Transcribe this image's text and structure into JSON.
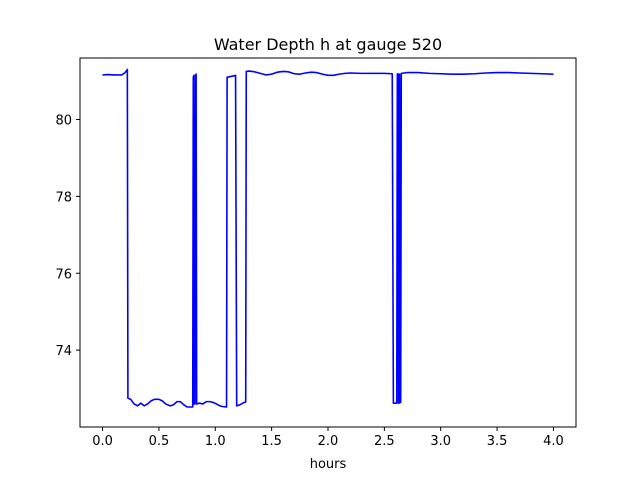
{
  "chart_data": {
    "type": "line",
    "title": "Water Depth h at gauge 520",
    "xlabel": "hours",
    "ylabel": "",
    "xlim": [
      -0.2,
      4.2
    ],
    "ylim": [
      72.0,
      81.6
    ],
    "xticks": [
      0.0,
      0.5,
      1.0,
      1.5,
      2.0,
      2.5,
      3.0,
      3.5,
      4.0
    ],
    "xtick_labels": [
      "0.0",
      "0.5",
      "1.0",
      "1.5",
      "2.0",
      "2.5",
      "3.0",
      "3.5",
      "4.0"
    ],
    "yticks": [
      74,
      76,
      78,
      80
    ],
    "ytick_labels": [
      "74",
      "76",
      "78",
      "80"
    ],
    "grid": false,
    "series": [
      {
        "color": "#0000ff",
        "points": [
          [
            0.0,
            81.16
          ],
          [
            0.05,
            81.17
          ],
          [
            0.1,
            81.16
          ],
          [
            0.17,
            81.16
          ],
          [
            0.2,
            81.22
          ],
          [
            0.22,
            81.3
          ],
          [
            0.225,
            72.75
          ],
          [
            0.25,
            72.72
          ],
          [
            0.28,
            72.6
          ],
          [
            0.31,
            72.55
          ],
          [
            0.34,
            72.62
          ],
          [
            0.37,
            72.55
          ],
          [
            0.4,
            72.6
          ],
          [
            0.43,
            72.68
          ],
          [
            0.46,
            72.72
          ],
          [
            0.5,
            72.72
          ],
          [
            0.53,
            72.68
          ],
          [
            0.56,
            72.6
          ],
          [
            0.6,
            72.55
          ],
          [
            0.63,
            72.58
          ],
          [
            0.66,
            72.66
          ],
          [
            0.69,
            72.66
          ],
          [
            0.72,
            72.58
          ],
          [
            0.75,
            72.52
          ],
          [
            0.78,
            72.52
          ],
          [
            0.8,
            72.52
          ],
          [
            0.805,
            81.1
          ],
          [
            0.81,
            81.15
          ],
          [
            0.812,
            72.6
          ],
          [
            0.82,
            72.6
          ],
          [
            0.825,
            81.15
          ],
          [
            0.83,
            81.18
          ],
          [
            0.835,
            72.6
          ],
          [
            0.86,
            72.62
          ],
          [
            0.89,
            72.6
          ],
          [
            0.92,
            72.66
          ],
          [
            0.95,
            72.66
          ],
          [
            0.98,
            72.64
          ],
          [
            1.01,
            72.6
          ],
          [
            1.04,
            72.55
          ],
          [
            1.07,
            72.53
          ],
          [
            1.1,
            72.52
          ],
          [
            1.105,
            81.1
          ],
          [
            1.14,
            81.12
          ],
          [
            1.17,
            81.14
          ],
          [
            1.18,
            81.15
          ],
          [
            1.19,
            72.55
          ],
          [
            1.22,
            72.58
          ],
          [
            1.25,
            72.63
          ],
          [
            1.27,
            72.65
          ],
          [
            1.275,
            81.25
          ],
          [
            1.3,
            81.26
          ],
          [
            1.35,
            81.24
          ],
          [
            1.4,
            81.2
          ],
          [
            1.45,
            81.16
          ],
          [
            1.5,
            81.18
          ],
          [
            1.55,
            81.23
          ],
          [
            1.6,
            81.25
          ],
          [
            1.65,
            81.24
          ],
          [
            1.7,
            81.19
          ],
          [
            1.75,
            81.18
          ],
          [
            1.8,
            81.21
          ],
          [
            1.85,
            81.23
          ],
          [
            1.9,
            81.22
          ],
          [
            1.95,
            81.18
          ],
          [
            2.0,
            81.15
          ],
          [
            2.05,
            81.15
          ],
          [
            2.1,
            81.18
          ],
          [
            2.15,
            81.2
          ],
          [
            2.2,
            81.21
          ],
          [
            2.3,
            81.2
          ],
          [
            2.4,
            81.2
          ],
          [
            2.5,
            81.2
          ],
          [
            2.57,
            81.19
          ],
          [
            2.58,
            72.62
          ],
          [
            2.61,
            72.62
          ],
          [
            2.615,
            81.18
          ],
          [
            2.62,
            81.19
          ],
          [
            2.625,
            72.62
          ],
          [
            2.63,
            72.62
          ],
          [
            2.632,
            81.18
          ],
          [
            2.635,
            81.18
          ],
          [
            2.64,
            72.64
          ],
          [
            2.645,
            72.64
          ],
          [
            2.65,
            81.2
          ],
          [
            2.7,
            81.22
          ],
          [
            2.8,
            81.22
          ],
          [
            2.9,
            81.2
          ],
          [
            3.0,
            81.19
          ],
          [
            3.1,
            81.18
          ],
          [
            3.2,
            81.18
          ],
          [
            3.3,
            81.19
          ],
          [
            3.4,
            81.21
          ],
          [
            3.5,
            81.22
          ],
          [
            3.6,
            81.22
          ],
          [
            3.7,
            81.21
          ],
          [
            3.8,
            81.2
          ],
          [
            3.9,
            81.19
          ],
          [
            4.0,
            81.18
          ]
        ]
      }
    ]
  }
}
